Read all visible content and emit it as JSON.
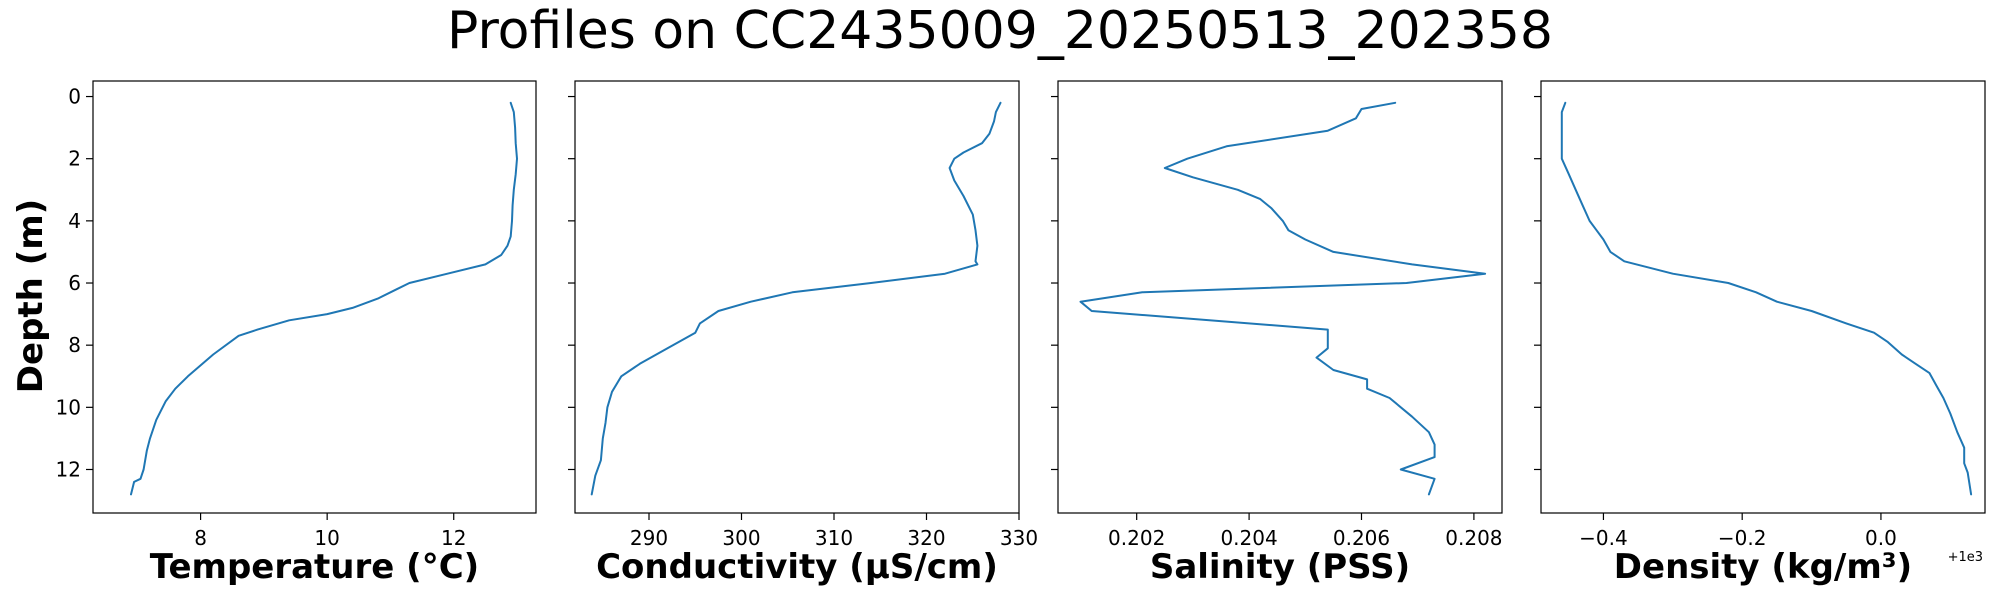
{
  "figure": {
    "title": "Profiles on CC2435009_20250513_202358",
    "ylabel": "Depth (m)",
    "line_color": "#1f77b4"
  },
  "chart_data": [
    {
      "type": "line",
      "xlabel": "Temperature (°C)",
      "ylabel": "Depth (m)",
      "xlim": [
        6.3,
        13.3
      ],
      "ylim": [
        13.4,
        -0.5
      ],
      "y_inverted": true,
      "grid": false,
      "x_ticks": [
        8,
        10,
        12
      ],
      "y_ticks": [
        0,
        2,
        4,
        6,
        8,
        10,
        12
      ],
      "x_offset_text": "",
      "series": [
        {
          "x": [
            12.9,
            12.95,
            12.97,
            12.98,
            13.0,
            12.98,
            12.95,
            12.93,
            12.92,
            12.9,
            12.85,
            12.75,
            12.5,
            11.9,
            11.3,
            11.1,
            10.8,
            10.4,
            10.0,
            9.4,
            8.9,
            8.6,
            8.2,
            7.8,
            7.6,
            7.45,
            7.3,
            7.2,
            7.15,
            7.1,
            7.05,
            6.95,
            6.9
          ],
          "y": [
            0.2,
            0.5,
            1.0,
            1.5,
            2.0,
            2.5,
            3.0,
            3.5,
            4.0,
            4.5,
            4.8,
            5.1,
            5.4,
            5.7,
            6.0,
            6.2,
            6.5,
            6.8,
            7.0,
            7.2,
            7.5,
            7.7,
            8.3,
            9.0,
            9.4,
            9.8,
            10.4,
            11.0,
            11.4,
            12.0,
            12.3,
            12.4,
            12.8
          ]
        }
      ]
    },
    {
      "type": "line",
      "xlabel": "Conductivity (µS/cm)",
      "ylabel": "",
      "xlim": [
        282,
        330
      ],
      "ylim": [
        13.4,
        -0.5
      ],
      "y_inverted": true,
      "grid": false,
      "x_ticks": [
        290,
        300,
        310,
        320,
        330
      ],
      "y_ticks": [
        0,
        2,
        4,
        6,
        8,
        10,
        12
      ],
      "x_offset_text": "",
      "series": [
        {
          "x": [
            328,
            327.5,
            327.3,
            326.8,
            326,
            324,
            323,
            322.5,
            323,
            324,
            325,
            325.3,
            325.5,
            325.3,
            325.5,
            322,
            314,
            305.5,
            301,
            297.5,
            295.5,
            295,
            292,
            289,
            287,
            286,
            285.5,
            285.3,
            285,
            284.8,
            284.2,
            283.8
          ],
          "y": [
            0.2,
            0.5,
            0.8,
            1.2,
            1.5,
            1.8,
            2.0,
            2.3,
            2.7,
            3.2,
            3.8,
            4.3,
            4.8,
            5.3,
            5.4,
            5.7,
            6.0,
            6.3,
            6.6,
            6.9,
            7.3,
            7.6,
            8.1,
            8.6,
            9.0,
            9.5,
            10.0,
            10.5,
            11.0,
            11.7,
            12.2,
            12.8
          ]
        }
      ]
    },
    {
      "type": "line",
      "xlabel": "Salinity (PSS)",
      "ylabel": "",
      "xlim": [
        0.2006,
        0.2085
      ],
      "ylim": [
        13.4,
        -0.5
      ],
      "y_inverted": true,
      "grid": false,
      "x_ticks": [
        0.202,
        0.204,
        0.206,
        0.208
      ],
      "y_ticks": [
        0,
        2,
        4,
        6,
        8,
        10,
        12
      ],
      "x_offset_text": "",
      "series": [
        {
          "x": [
            0.2066,
            0.206,
            0.2059,
            0.2054,
            0.2036,
            0.2029,
            0.2025,
            0.203,
            0.2038,
            0.2042,
            0.2044,
            0.2046,
            0.2047,
            0.205,
            0.2055,
            0.2069,
            0.2082,
            0.2068,
            0.2021,
            0.201,
            0.2012,
            0.2054,
            0.2054,
            0.2054,
            0.2052,
            0.2055,
            0.2061,
            0.2061,
            0.2065,
            0.2069,
            0.2072,
            0.2073,
            0.2073,
            0.2067,
            0.2073,
            0.2072
          ],
          "y": [
            0.2,
            0.4,
            0.7,
            1.1,
            1.6,
            2.0,
            2.3,
            2.6,
            3.0,
            3.3,
            3.6,
            4.0,
            4.3,
            4.6,
            5.0,
            5.4,
            5.7,
            6.0,
            6.3,
            6.6,
            6.9,
            7.5,
            7.9,
            8.1,
            8.4,
            8.8,
            9.1,
            9.4,
            9.7,
            10.3,
            10.8,
            11.2,
            11.6,
            12.0,
            12.3,
            12.8
          ]
        }
      ]
    },
    {
      "type": "line",
      "xlabel": "Density (kg/m³)",
      "ylabel": "",
      "xlim": [
        -0.49,
        0.15
      ],
      "ylim": [
        13.4,
        -0.5
      ],
      "y_inverted": true,
      "grid": false,
      "x_ticks": [
        -0.4,
        -0.2,
        0.0
      ],
      "x_tick_labels": [
        "−0.4",
        "−0.2",
        "0.0"
      ],
      "y_ticks": [
        0,
        2,
        4,
        6,
        8,
        10,
        12
      ],
      "x_offset_text": "+1e3",
      "series": [
        {
          "x": [
            -0.455,
            -0.46,
            -0.46,
            -0.46,
            -0.46,
            -0.45,
            -0.44,
            -0.43,
            -0.42,
            -0.41,
            -0.4,
            -0.39,
            -0.37,
            -0.3,
            -0.22,
            -0.18,
            -0.15,
            -0.1,
            -0.05,
            -0.01,
            0.01,
            0.03,
            0.05,
            0.07,
            0.08,
            0.09,
            0.1,
            0.11,
            0.12,
            0.12,
            0.125,
            0.13
          ],
          "y": [
            0.2,
            0.5,
            1.0,
            1.5,
            2.0,
            2.5,
            3.0,
            3.5,
            4.0,
            4.3,
            4.6,
            5.0,
            5.3,
            5.7,
            6.0,
            6.3,
            6.6,
            6.9,
            7.3,
            7.6,
            7.9,
            8.3,
            8.6,
            8.9,
            9.3,
            9.7,
            10.2,
            10.8,
            11.3,
            11.8,
            12.1,
            12.8
          ]
        }
      ]
    }
  ]
}
